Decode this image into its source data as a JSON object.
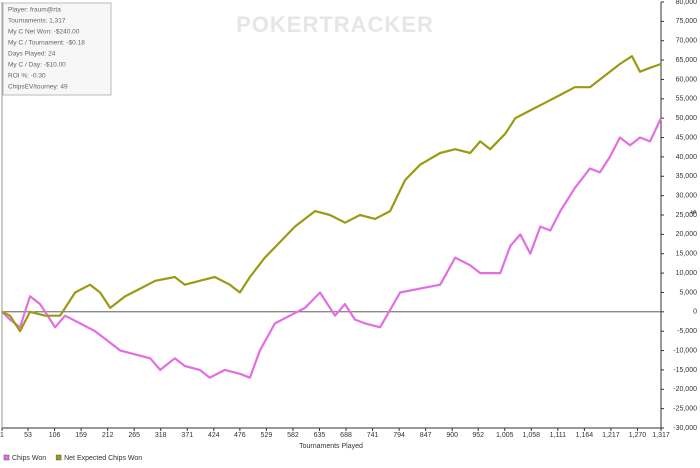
{
  "chart_data": {
    "type": "line",
    "watermark": "POKERTRACKER",
    "info": [
      "Player: fraum@rta",
      "Tournaments: 1,317",
      "My C Net Won: -$240.00",
      "My C / Tournament: -$0.18",
      "Days Played: 24",
      "My C / Day: -$10.00",
      "ROI %: -0.30",
      "ChipsEV/tourney: 49"
    ],
    "x_label": "Tournaments Played",
    "y_label": "$",
    "xlim": [
      1,
      1317
    ],
    "xticks": [
      1,
      53,
      106,
      159,
      212,
      265,
      318,
      371,
      424,
      476,
      529,
      582,
      635,
      688,
      741,
      794,
      847,
      900,
      952,
      {
        "value": 1005,
        "label": "1,005"
      },
      {
        "value": 1058,
        "label": "1,058"
      },
      {
        "value": 1111,
        "label": "1,111"
      },
      {
        "value": 1164,
        "label": "1,164"
      },
      {
        "value": 1217,
        "label": "1,217"
      },
      {
        "value": 1270,
        "label": "1,270"
      },
      {
        "value": 1317,
        "label": "1,317"
      }
    ],
    "ylim": [
      -30000,
      80000
    ],
    "yticks": [
      {
        "value": -30000,
        "label": "-30,000"
      },
      {
        "value": -25000,
        "label": "-25,000"
      },
      {
        "value": -20000,
        "label": "-20,000"
      },
      {
        "value": -15000,
        "label": "-15,000"
      },
      {
        "value": -10000,
        "label": "-10,000"
      },
      {
        "value": -5000,
        "label": "-5,000"
      },
      0,
      {
        "value": 5000,
        "label": "5,000"
      },
      {
        "value": 10000,
        "label": "10,000"
      },
      {
        "value": 15000,
        "label": "15,000"
      },
      {
        "value": 20000,
        "label": "20,000"
      },
      {
        "value": 25000,
        "label": "25,000"
      },
      {
        "value": 30000,
        "label": "30,000"
      },
      {
        "value": 35000,
        "label": "35,000"
      },
      {
        "value": 40000,
        "label": "40,000"
      },
      {
        "value": 45000,
        "label": "45,000"
      },
      {
        "value": 50000,
        "label": "50,000"
      },
      {
        "value": 55000,
        "label": "55,000"
      },
      {
        "value": 60000,
        "label": "60,000"
      },
      {
        "value": 65000,
        "label": "65,000"
      },
      {
        "value": 70000,
        "label": "70,000"
      },
      {
        "value": 75000,
        "label": "75,000"
      },
      {
        "value": 80000,
        "label": "80,000"
      }
    ],
    "series": [
      {
        "name": "Chips Won",
        "color": "#e36ee3",
        "x": [
          1,
          17,
          37,
          57,
          77,
          107,
          127,
          157,
          187,
          217,
          237,
          267,
          297,
          317,
          346,
          366,
          396,
          416,
          446,
          476,
          496,
          516,
          546,
          576,
          606,
          636,
          666,
          686,
          706,
          726,
          756,
          796,
          836,
          876,
          906,
          936,
          956,
          996,
          1016,
          1036,
          1056,
          1076,
          1096,
          1116,
          1145,
          1175,
          1195,
          1215,
          1235,
          1255,
          1275,
          1295,
          1317
        ],
        "values": [
          0,
          -2000,
          -4000,
          4000,
          2000,
          -4000,
          -1000,
          -3000,
          -5000,
          -8000,
          -10000,
          -11000,
          -12000,
          -15000,
          -12000,
          -14000,
          -15000,
          -17000,
          -15000,
          -16000,
          -17000,
          -10000,
          -3000,
          -1000,
          1000,
          5000,
          -1000,
          2000,
          -2000,
          -3000,
          -4000,
          5000,
          6000,
          7000,
          14000,
          12000,
          10000,
          10000,
          17000,
          20000,
          15000,
          22000,
          21000,
          26000,
          32000,
          37000,
          36000,
          40000,
          45000,
          43000,
          45000,
          44000,
          50000
        ]
      },
      {
        "name": "Net Expected Chips Won",
        "color": "#9c9a12",
        "x": [
          1,
          17,
          37,
          57,
          87,
          117,
          147,
          177,
          197,
          217,
          247,
          277,
          307,
          346,
          366,
          396,
          426,
          456,
          476,
          496,
          526,
          556,
          586,
          626,
          656,
          686,
          716,
          746,
          776,
          806,
          836,
          876,
          906,
          936,
          956,
          976,
          1006,
          1026,
          1056,
          1086,
          1116,
          1145,
          1175,
          1205,
          1235,
          1259,
          1275,
          1295,
          1317
        ],
        "values": [
          0,
          -1000,
          -5000,
          0,
          -1000,
          -1000,
          5000,
          7000,
          5000,
          1000,
          4000,
          6000,
          8000,
          9000,
          7000,
          8000,
          9000,
          7000,
          5000,
          9000,
          14000,
          18000,
          22000,
          26000,
          25000,
          23000,
          25000,
          24000,
          26000,
          34000,
          38000,
          41000,
          42000,
          41000,
          44000,
          42000,
          46000,
          50000,
          52000,
          54000,
          56000,
          58000,
          58000,
          61000,
          64000,
          66000,
          62000,
          63000,
          64000
        ]
      }
    ]
  }
}
